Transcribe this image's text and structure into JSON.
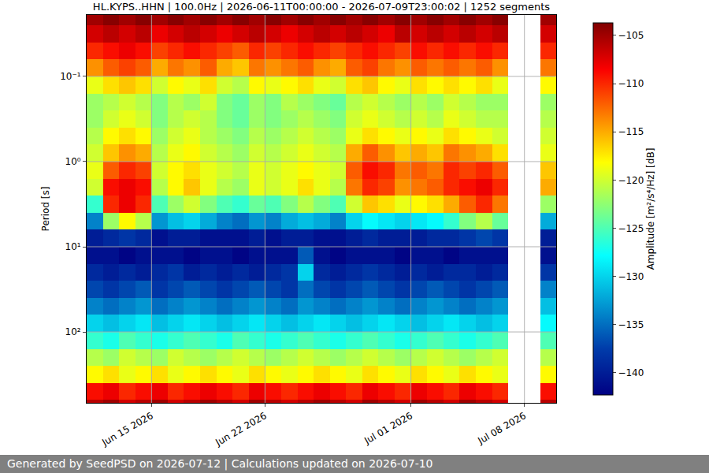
{
  "chart_data": {
    "type": "heatmap",
    "title": "HL.KYPS..HHN | 100.0Hz | 2026-06-11T00:00:00 - 2026-07-09T23:00:02 | 1252 segments",
    "y_label": "Period [s]",
    "annotations": [
      "Generated by SeedPSD on 2026-07-12 | Calculations updated on 2026-07-10"
    ],
    "log": "y",
    "grid": true,
    "color": "Jet",
    "xlim": [
      "2026-06-11T00:00:00",
      "2026-07-09T23:00:02"
    ],
    "xticks": [
      {
        "value": "2026-06-15",
        "label": "Jun 15 2026"
      },
      {
        "value": "2026-06-22",
        "label": "Jun 22 2026"
      },
      {
        "value": "2026-07-01",
        "label": "Jul 01 2026"
      },
      {
        "value": "2026-07-08",
        "label": "Jul 08 2026"
      }
    ],
    "ylim": [
      680,
      0.019
    ],
    "yticks": [
      {
        "value": 0.1,
        "label": "10⁻¹"
      },
      {
        "value": 1,
        "label": "10⁰"
      },
      {
        "value": 10,
        "label": "10¹"
      },
      {
        "value": 100,
        "label": "10²"
      }
    ],
    "colorbar": {
      "label": "Amplitude [m²/s⁴/Hz] [dB]",
      "range": [
        -142.3,
        -103.7
      ],
      "ticks": [
        -140,
        -135,
        -130,
        -125,
        -120,
        -115,
        -110,
        -105
      ]
    },
    "x_edges": [
      "2026-06-11",
      "2026-06-12",
      "2026-06-13",
      "2026-06-14",
      "2026-06-15",
      "2026-06-16",
      "2026-06-17",
      "2026-06-18",
      "2026-06-19",
      "2026-06-20",
      "2026-06-21",
      "2026-06-22",
      "2026-06-23",
      "2026-06-24",
      "2026-06-25",
      "2026-06-26",
      "2026-06-27",
      "2026-06-28",
      "2026-06-29",
      "2026-06-30",
      "2026-07-01",
      "2026-07-02",
      "2026-07-03",
      "2026-07-04",
      "2026-07-05",
      "2026-07-06",
      "2026-07-07",
      "2026-07-08",
      "2026-07-09",
      "2026-07-10"
    ],
    "y_edges": [
      0.016,
      0.025,
      0.04,
      0.063,
      0.1,
      0.16,
      0.25,
      0.4,
      0.63,
      1,
      1.6,
      2.5,
      4,
      6.3,
      10,
      16,
      25,
      40,
      63,
      100,
      160,
      250,
      400,
      630,
      1000
    ],
    "z": [
      [
        -105,
        -104,
        -105,
        -104,
        -105,
        -104,
        -105,
        -104,
        -105,
        -104,
        -105,
        -104,
        -105,
        -104,
        -105,
        -104,
        -105,
        -104,
        -105,
        -104,
        -105,
        -104,
        -105,
        -104,
        -105,
        -104,
        null,
        null,
        -105
      ],
      [
        -107,
        -106,
        -107,
        -106,
        -108,
        -107,
        -106,
        -107,
        -108,
        -107,
        -106,
        -107,
        -108,
        -107,
        -106,
        -107,
        -106,
        -107,
        -108,
        -106,
        -107,
        -106,
        -107,
        -106,
        -107,
        -106,
        null,
        null,
        -107
      ],
      [
        -110,
        -109,
        -108,
        -109,
        -111,
        -110,
        -109,
        -110,
        -111,
        -112,
        -110,
        -111,
        -110,
        -109,
        -110,
        -111,
        -110,
        -109,
        -110,
        -111,
        -109,
        -110,
        -109,
        -110,
        -109,
        -110,
        null,
        null,
        -110
      ],
      [
        -114,
        -112,
        -111,
        -112,
        -115,
        -113,
        -114,
        -112,
        -115,
        -116,
        -113,
        -114,
        -113,
        -112,
        -114,
        -115,
        -112,
        -111,
        -113,
        -114,
        -112,
        -113,
        -112,
        -113,
        -112,
        -114,
        null,
        null,
        -113
      ],
      [
        -119,
        -117,
        -116,
        -117,
        -120,
        -118,
        -119,
        -117,
        -120,
        -121,
        -118,
        -119,
        -118,
        -117,
        -119,
        -120,
        -117,
        -116,
        -118,
        -119,
        -117,
        -118,
        -117,
        -118,
        -117,
        -119,
        null,
        null,
        -118
      ],
      [
        -122,
        -121,
        -120,
        -121,
        -123,
        -121,
        -122,
        -120,
        -123,
        -124,
        -122,
        -123,
        -121,
        -122,
        -123,
        -124,
        -121,
        -120,
        -121,
        -122,
        -121,
        -122,
        -120,
        -121,
        -122,
        -122,
        null,
        null,
        -122
      ],
      [
        -122,
        -120,
        -119,
        -120,
        -123,
        -121,
        -120,
        -121,
        -123,
        -124,
        -122,
        -123,
        -122,
        -121,
        -122,
        -123,
        -120,
        -119,
        -120,
        -121,
        -120,
        -121,
        -119,
        -120,
        -121,
        -121,
        null,
        null,
        -121
      ],
      [
        -121,
        -118,
        -117,
        -118,
        -122,
        -120,
        -119,
        -121,
        -122,
        -123,
        -121,
        -122,
        -121,
        -120,
        -121,
        -122,
        -119,
        -117,
        -118,
        -119,
        -118,
        -119,
        -117,
        -118,
        -119,
        -120,
        null,
        null,
        -120
      ],
      [
        -120,
        -116,
        -114,
        -115,
        -121,
        -119,
        -118,
        -120,
        -121,
        -122,
        -120,
        -121,
        -120,
        -119,
        -120,
        -121,
        -115,
        -112,
        -114,
        -116,
        -115,
        -116,
        -113,
        -114,
        -115,
        -117,
        null,
        null,
        -119
      ],
      [
        -119,
        -112,
        -110,
        -111,
        -120,
        -118,
        -117,
        -119,
        -120,
        -121,
        -119,
        -120,
        -119,
        -118,
        -119,
        -120,
        -112,
        -109,
        -110,
        -113,
        -112,
        -113,
        -110,
        -111,
        -110,
        -112,
        null,
        null,
        -116
      ],
      [
        -120,
        -109,
        -108,
        -109,
        -121,
        -118,
        -116,
        -119,
        -121,
        -122,
        -119,
        -120,
        -119,
        -117,
        -119,
        -121,
        -113,
        -110,
        -111,
        -114,
        -113,
        -112,
        -110,
        -109,
        -108,
        -110,
        null,
        null,
        -115
      ],
      [
        -126,
        -110,
        -108,
        -110,
        -125,
        -122,
        -120,
        -123,
        -125,
        -126,
        -124,
        -125,
        -123,
        -121,
        -123,
        -125,
        -120,
        -116,
        -117,
        -119,
        -118,
        -117,
        -115,
        -112,
        -110,
        -113,
        null,
        null,
        -122
      ],
      [
        -134,
        -122,
        -118,
        -121,
        -133,
        -131,
        -130,
        -132,
        -134,
        -135,
        -133,
        -134,
        -132,
        -131,
        -132,
        -134,
        -130,
        -128,
        -129,
        -130,
        -129,
        -128,
        -126,
        -123,
        -121,
        -124,
        null,
        null,
        -132
      ],
      [
        -140,
        -139,
        -138,
        -139,
        -141,
        -140,
        -140,
        -141,
        -141,
        -141,
        -140,
        -141,
        -140,
        -140,
        -141,
        -141,
        -140,
        -139,
        -140,
        -140,
        -140,
        -139,
        -139,
        -138,
        -137,
        -138,
        null,
        null,
        -140
      ],
      [
        -141,
        -141,
        -142,
        -141,
        -141,
        -141,
        -142,
        -141,
        -141,
        -142,
        -141,
        -141,
        -141,
        -136,
        -141,
        -142,
        -141,
        -141,
        -141,
        -142,
        -141,
        -141,
        -142,
        -141,
        -141,
        -141,
        null,
        null,
        -141
      ],
      [
        -139,
        -140,
        -139,
        -140,
        -139,
        -138,
        -140,
        -139,
        -140,
        -139,
        -140,
        -139,
        -138,
        -130,
        -139,
        -140,
        -139,
        -138,
        -139,
        -140,
        -139,
        -140,
        -139,
        -139,
        -140,
        -139,
        null,
        null,
        -138
      ],
      [
        -137,
        -138,
        -137,
        -136,
        -138,
        -137,
        -136,
        -137,
        -138,
        -137,
        -136,
        -137,
        -138,
        -135,
        -137,
        -138,
        -137,
        -136,
        -137,
        -138,
        -137,
        -136,
        -137,
        -138,
        -137,
        -136,
        null,
        null,
        -134
      ],
      [
        -134,
        -135,
        -134,
        -133,
        -135,
        -134,
        -133,
        -134,
        -135,
        -134,
        -133,
        -134,
        -135,
        -133,
        -134,
        -135,
        -134,
        -133,
        -134,
        -135,
        -134,
        -133,
        -134,
        -135,
        -134,
        -133,
        null,
        null,
        -131
      ],
      [
        -130,
        -131,
        -130,
        -129,
        -131,
        -130,
        -129,
        -130,
        -131,
        -130,
        -129,
        -130,
        -131,
        -130,
        -129,
        -130,
        -131,
        -130,
        -129,
        -130,
        -131,
        -130,
        -129,
        -130,
        -131,
        -130,
        null,
        null,
        -128
      ],
      [
        -126,
        -127,
        -125,
        -126,
        -127,
        -126,
        -125,
        -126,
        -127,
        -125,
        -126,
        -127,
        -126,
        -125,
        -126,
        -127,
        -126,
        -125,
        -126,
        -127,
        -126,
        -125,
        -126,
        -127,
        -126,
        -125,
        null,
        null,
        -125
      ],
      [
        -121,
        -122,
        -120,
        -121,
        -122,
        -120,
        -121,
        -122,
        -121,
        -120,
        -121,
        -122,
        -121,
        -120,
        -121,
        -122,
        -121,
        -120,
        -121,
        -122,
        -121,
        -120,
        -121,
        -122,
        -121,
        -120,
        null,
        null,
        -121
      ],
      [
        -118,
        -117,
        -119,
        -118,
        -117,
        -119,
        -118,
        -117,
        -118,
        -119,
        -117,
        -118,
        -119,
        -118,
        -117,
        -118,
        -119,
        -117,
        -118,
        -119,
        -117,
        -118,
        -119,
        -117,
        -118,
        -119,
        null,
        null,
        -118
      ],
      [
        -109,
        -108,
        -110,
        -109,
        -108,
        -110,
        -109,
        -108,
        -109,
        -110,
        -108,
        -109,
        -110,
        -109,
        -108,
        -109,
        -110,
        -108,
        -109,
        -110,
        -108,
        -109,
        -110,
        -108,
        -109,
        -110,
        null,
        null,
        -109
      ],
      [
        -106,
        -105,
        -107,
        -106,
        -105,
        -107,
        -106,
        -105,
        -106,
        -107,
        -105,
        -106,
        -107,
        -106,
        -105,
        -106,
        -107,
        -105,
        -106,
        -107,
        -105,
        -106,
        -107,
        -105,
        -106,
        -107,
        null,
        null,
        -106
      ]
    ]
  }
}
